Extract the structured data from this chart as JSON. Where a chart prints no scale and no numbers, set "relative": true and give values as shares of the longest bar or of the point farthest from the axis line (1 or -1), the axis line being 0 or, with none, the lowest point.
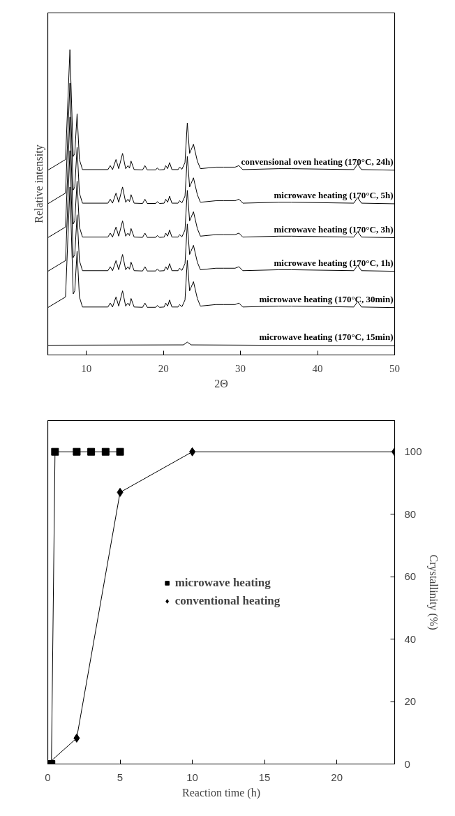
{
  "chart_data": [
    {
      "type": "line",
      "relative": true,
      "xlabel": "2Θ",
      "ylabel": "Relative intensity",
      "xlim": [
        5,
        50
      ],
      "xticks": [
        10,
        20,
        30,
        40,
        50
      ],
      "tick_labels": "x",
      "grid": false,
      "legend": false,
      "marker": "none",
      "line_style": "solid",
      "x": [
        5,
        7.3,
        7.87,
        8.3,
        8.5,
        8.8,
        9.1,
        9.5,
        12.8,
        13.1,
        13.4,
        13.85,
        14.2,
        14.7,
        15.1,
        15.4,
        15.6,
        15.8,
        16.2,
        17.3,
        17.6,
        17.9,
        19.0,
        19.2,
        19.5,
        20.1,
        20.3,
        20.55,
        20.8,
        21.1,
        21.9,
        22.1,
        22.4,
        22.8,
        23.1,
        23.4,
        23.9,
        24.4,
        24.8,
        26.8,
        27.8,
        29.3,
        29.8,
        30.3,
        35.0,
        36.6,
        44.7,
        45.2,
        45.7,
        50
      ],
      "series": [
        {
          "name": "convensional oven heating (170°C, 24h)",
          "color": "#000000",
          "values": [
            0.605,
            0.64,
            1.0,
            0.65,
            0.66,
            0.79,
            0.64,
            0.607,
            0.607,
            0.62,
            0.607,
            0.64,
            0.61,
            0.66,
            0.61,
            0.62,
            0.612,
            0.635,
            0.607,
            0.606,
            0.62,
            0.606,
            0.606,
            0.612,
            0.606,
            0.607,
            0.62,
            0.61,
            0.63,
            0.607,
            0.607,
            0.615,
            0.608,
            0.63,
            0.76,
            0.66,
            0.69,
            0.635,
            0.61,
            0.615,
            0.615,
            0.615,
            0.62,
            0.607,
            0.61,
            0.61,
            0.607,
            0.625,
            0.607,
            0.605
          ]
        },
        {
          "name": "microwave heating (170°C, 5h)",
          "color": "#000000",
          "values": [
            0.495,
            0.53,
            0.89,
            0.54,
            0.55,
            0.68,
            0.53,
            0.497,
            0.497,
            0.51,
            0.497,
            0.53,
            0.5,
            0.55,
            0.5,
            0.51,
            0.502,
            0.525,
            0.497,
            0.496,
            0.51,
            0.496,
            0.496,
            0.502,
            0.496,
            0.497,
            0.51,
            0.5,
            0.52,
            0.497,
            0.497,
            0.505,
            0.498,
            0.52,
            0.65,
            0.55,
            0.58,
            0.525,
            0.5,
            0.505,
            0.505,
            0.505,
            0.51,
            0.497,
            0.5,
            0.5,
            0.497,
            0.515,
            0.497,
            0.495
          ]
        },
        {
          "name": "microwave heating (170°C, 3h)",
          "color": "#000000",
          "values": [
            0.384,
            0.419,
            0.779,
            0.429,
            0.439,
            0.569,
            0.419,
            0.386,
            0.386,
            0.399,
            0.386,
            0.419,
            0.389,
            0.439,
            0.389,
            0.399,
            0.391,
            0.414,
            0.386,
            0.385,
            0.399,
            0.385,
            0.385,
            0.391,
            0.385,
            0.386,
            0.399,
            0.389,
            0.409,
            0.386,
            0.386,
            0.394,
            0.387,
            0.409,
            0.539,
            0.439,
            0.469,
            0.414,
            0.389,
            0.394,
            0.394,
            0.394,
            0.399,
            0.386,
            0.389,
            0.389,
            0.386,
            0.404,
            0.386,
            0.384
          ]
        },
        {
          "name": "microwave heating (170°C, 1h)",
          "color": "#000000",
          "values": [
            0.274,
            0.309,
            0.669,
            0.319,
            0.329,
            0.459,
            0.309,
            0.276,
            0.276,
            0.289,
            0.276,
            0.309,
            0.279,
            0.329,
            0.279,
            0.289,
            0.281,
            0.304,
            0.276,
            0.275,
            0.289,
            0.275,
            0.275,
            0.281,
            0.275,
            0.276,
            0.289,
            0.279,
            0.299,
            0.276,
            0.276,
            0.284,
            0.277,
            0.299,
            0.429,
            0.329,
            0.359,
            0.304,
            0.279,
            0.284,
            0.284,
            0.284,
            0.289,
            0.276,
            0.279,
            0.279,
            0.276,
            0.294,
            0.276,
            0.274
          ]
        },
        {
          "name": "microwave heating (170°C, 30min)",
          "color": "#000000",
          "values": [
            0.155,
            0.19,
            0.55,
            0.2,
            0.21,
            0.34,
            0.19,
            0.157,
            0.157,
            0.17,
            0.157,
            0.19,
            0.16,
            0.21,
            0.16,
            0.17,
            0.162,
            0.185,
            0.157,
            0.156,
            0.17,
            0.156,
            0.156,
            0.162,
            0.156,
            0.157,
            0.17,
            0.16,
            0.18,
            0.157,
            0.157,
            0.165,
            0.158,
            0.18,
            0.31,
            0.21,
            0.24,
            0.185,
            0.16,
            0.165,
            0.165,
            0.165,
            0.17,
            0.157,
            0.16,
            0.16,
            0.157,
            0.175,
            0.157,
            0.155
          ]
        },
        {
          "name": "microwave heating (170°C, 15min)",
          "color": "#000000",
          "x": [
            5,
            22.6,
            23.1,
            23.6,
            50
          ],
          "values": [
            0.032,
            0.033,
            0.042,
            0.033,
            0.03
          ]
        }
      ]
    },
    {
      "type": "line",
      "xlabel": "Reaction time (h)",
      "ylabel": "Crystallinity (%)",
      "xlim": [
        0,
        24
      ],
      "xticks": [
        0,
        5,
        10,
        15,
        20
      ],
      "ylim": [
        0,
        110
      ],
      "yticks": [
        0,
        20,
        40,
        60,
        80,
        100
      ],
      "grid": false,
      "legend": "center",
      "line_style": "solid",
      "series": [
        {
          "name": "microwave heating",
          "color": "#000000",
          "marker": "square",
          "x": [
            0,
            0.25,
            0.5,
            2,
            3,
            4,
            5
          ],
          "values": [
            0,
            0,
            100,
            100,
            100,
            100,
            100
          ]
        },
        {
          "name": "conventional heating",
          "color": "#000000",
          "marker": "diamond",
          "x": [
            0,
            2,
            5,
            10,
            24
          ],
          "values": [
            0,
            8.3,
            87,
            100,
            100
          ]
        }
      ]
    }
  ]
}
